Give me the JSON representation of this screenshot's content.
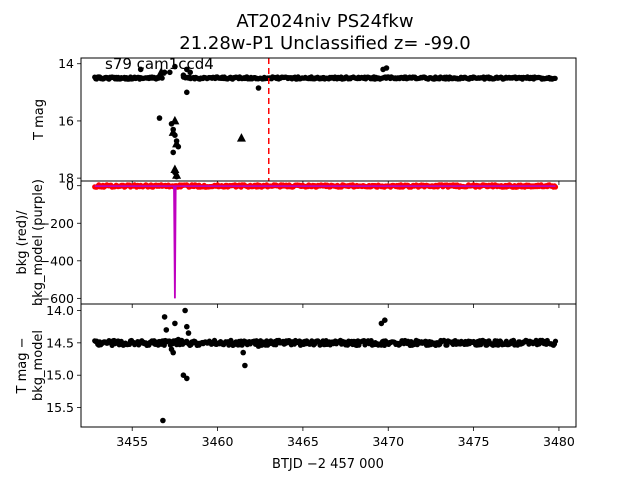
{
  "title_line1": "AT2024niv  PS24fkw",
  "title_line2": "21.28w-P1 Unclassified z= -99.0",
  "annotation": "s79 cam1ccd4",
  "xlabel": "BTJD −2 457 000",
  "colors": {
    "points": "#000000",
    "bkg": "#ff0000",
    "bkg_model": "#bf00bf",
    "marker_line": "#ff0000"
  },
  "chart_data": [
    {
      "type": "scatter",
      "panel": "top",
      "ylabel": "T mag",
      "inverted_y": true,
      "xlim": [
        3452.0,
        3481.0
      ],
      "ylim": [
        18.1,
        13.8
      ],
      "yticks": [
        14,
        16,
        18
      ],
      "xticks": [],
      "vertical_line_x": 3463.0,
      "series": [
        {
          "style": "points",
          "baseline_segments": [
            {
              "x": [
                3452.8,
                3456.8
              ],
              "y": 14.5
            },
            {
              "x": [
                3458.0,
                3462.4
              ],
              "y": 14.5
            },
            {
              "x": [
                3462.5,
                3479.8
              ],
              "y": 14.5
            }
          ],
          "points": [
            [
              3455.5,
              14.2
            ],
            [
              3456.9,
              14.3
            ],
            [
              3457.2,
              14.3
            ],
            [
              3457.5,
              14.1
            ],
            [
              3458.2,
              14.2
            ],
            [
              3458.4,
              14.3
            ],
            [
              3458.2,
              15.0
            ],
            [
              3462.4,
              14.85
            ],
            [
              3469.7,
              14.2
            ],
            [
              3469.9,
              14.15
            ],
            [
              3456.6,
              15.9
            ],
            [
              3457.3,
              16.1
            ],
            [
              3457.4,
              16.3
            ],
            [
              3457.5,
              16.5
            ],
            [
              3457.6,
              16.7
            ],
            [
              3457.7,
              16.9
            ],
            [
              3457.4,
              17.1
            ],
            [
              3457.5,
              17.8
            ],
            [
              3457.6,
              17.95
            ],
            [
              3458.0,
              14.4
            ]
          ],
          "triangles": [
            [
              3457.5,
              16.0
            ],
            [
              3457.4,
              16.4
            ],
            [
              3457.6,
              16.8
            ],
            [
              3457.5,
              17.7
            ],
            [
              3457.6,
              17.9
            ],
            [
              3461.4,
              16.6
            ],
            [
              3456.7,
              14.3
            ]
          ]
        }
      ]
    },
    {
      "type": "line",
      "panel": "middle",
      "ylabel": "bkg (red)/\nbkg_model (purple)",
      "xlim": [
        3452.0,
        3481.0
      ],
      "ylim": [
        -630,
        25
      ],
      "yticks": [
        0,
        -200,
        -400,
        -600
      ],
      "xticks": [],
      "series": [
        {
          "name": "bkg (red)",
          "x": [
            3452.8,
            3479.8
          ],
          "y_band": [
            -8,
            5
          ]
        },
        {
          "name": "bkg_model (purple)",
          "x": [
            3452.8,
            3457.45,
            3457.5,
            3457.55,
            3479.8
          ],
          "y": [
            -2,
            -2,
            -600,
            -2,
            -2
          ]
        }
      ]
    },
    {
      "type": "scatter",
      "panel": "bottom",
      "ylabel": "T mag −\nbkg_model",
      "inverted_y": true,
      "xlim": [
        3452.0,
        3481.0
      ],
      "ylim": [
        15.8,
        13.9
      ],
      "yticks": [
        14.0,
        14.5,
        15.0,
        15.5
      ],
      "xticks": [
        3455,
        3460,
        3465,
        3470,
        3475,
        3480
      ],
      "series": [
        {
          "style": "points",
          "baseline": 14.5,
          "points": [
            [
              3456.9,
              14.1
            ],
            [
              3457.0,
              14.3
            ],
            [
              3457.5,
              14.2
            ],
            [
              3458.1,
              14.0
            ],
            [
              3458.2,
              14.25
            ],
            [
              3458.3,
              14.35
            ],
            [
              3457.3,
              14.6
            ],
            [
              3457.4,
              14.65
            ],
            [
              3458.0,
              15.0
            ],
            [
              3458.2,
              15.05
            ],
            [
              3456.8,
              15.7
            ],
            [
              3461.5,
              14.65
            ],
            [
              3461.6,
              14.85
            ],
            [
              3462.4,
              14.55
            ],
            [
              3469.6,
              14.2
            ],
            [
              3469.8,
              14.15
            ],
            [
              3457.7,
              14.45
            ]
          ]
        }
      ]
    }
  ]
}
